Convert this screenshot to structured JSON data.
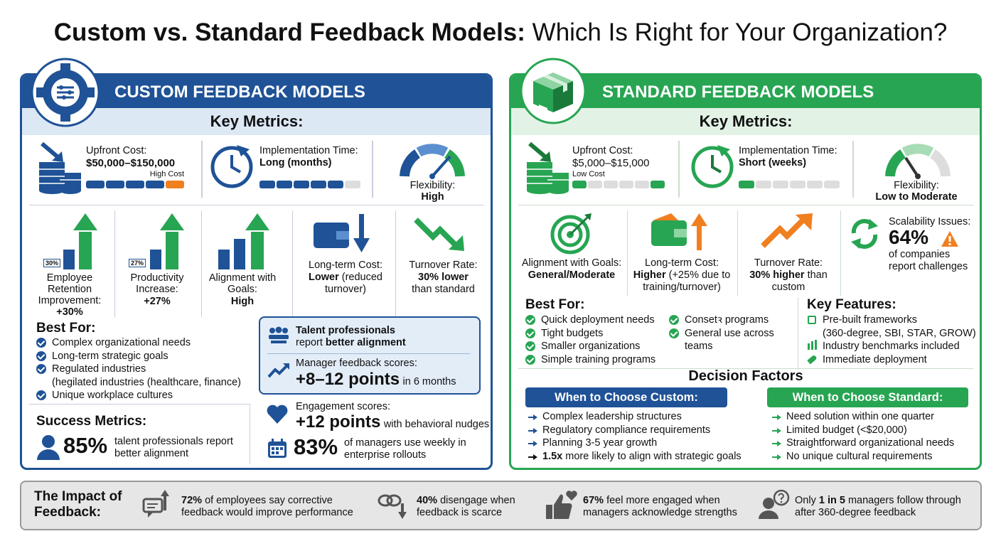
{
  "title": {
    "bold": "Custom vs. Standard Feedback Models:",
    "rest": "Which Is Right for Your Organization?"
  },
  "custom": {
    "heading": "CUSTOM FEEDBACK MODELS",
    "key_metrics": "Key Metrics:",
    "upfront": {
      "label": "Upfront Cost:",
      "value": "$50,000–$150,000",
      "note": "High Cost"
    },
    "implementation": {
      "label": "Implementation Time:",
      "value": "Long (months)"
    },
    "flexibility": {
      "label": "Flexibility:",
      "value": "High"
    },
    "stats": [
      {
        "badge": "30%",
        "label": "Employee Retention Improvement:",
        "value": "+30%"
      },
      {
        "badge": "27%",
        "label": "Productivity Increase:",
        "value": "+27%"
      },
      {
        "label": "Alignment with Goals:",
        "value": "High"
      },
      {
        "label": "Long-term Cost:",
        "value": "Lower",
        "detail": "(reduced turnover)"
      },
      {
        "label": "Turnover Rate:",
        "value": "30% lower",
        "detail": "than standard"
      }
    ],
    "best_for": {
      "title": "Best For:",
      "items": [
        "Complex organizational needs",
        "Long-term strategic goals",
        "Regulated industries",
        "Unique workplace cultures"
      ],
      "regulated_detail": "(hegilated industries (healthcare, finance)"
    },
    "success": {
      "title": "Success Metrics:",
      "value": "85%",
      "text": "talent professionals report better alignment"
    },
    "highlight": {
      "lead": "Talent professionals",
      "text": "report",
      "emph": "better alignment",
      "manager_label": "Manager feedback scores:",
      "manager_value": "+8–12 points",
      "manager_detail": "in 6 months"
    },
    "engagement": {
      "label": "Engagement scores:",
      "value": "+12 points",
      "detail": "with behavioral nudges"
    },
    "weekly": {
      "value": "83%",
      "text": "of managers use weekly in enterprise rollouts"
    }
  },
  "standard": {
    "heading": "STANDARD FEEDBACK MODELS",
    "key_metrics": "Key Metrics:",
    "upfront": {
      "label": "Upfront Cost:",
      "value": "$5,000–$15,000",
      "note": "Low Cost"
    },
    "implementation": {
      "label": "Implementation Time:",
      "value": "Short (weeks)"
    },
    "flexibility": {
      "label": "Flexibility:",
      "value": "Low to Moderate"
    },
    "stats": [
      {
        "label": "Alignment with Goals:",
        "value": "General/Moderate"
      },
      {
        "label": "Long-term Cost:",
        "value": "Higher",
        "detail": "(+25% due to training/turnover)"
      },
      {
        "label": "Turnover Rate:",
        "value": "30% higher",
        "detail": "than custom"
      },
      {
        "label": "Scalability Issues:",
        "value": "64%",
        "detail": "of companies report challenges"
      }
    ],
    "best_for": {
      "title": "Best For:",
      "items": [
        "Quick deployment needs",
        "Tight budgets",
        "Smaller organizations",
        "Simple training programs",
        "Consetꝛ programs",
        "General use across teams"
      ]
    },
    "key_features": {
      "title": "Key Features:",
      "items": [
        "Pre-built frameworks",
        "Industry benchmarks included",
        "Immediate deployment"
      ],
      "frameworks_detail": "(360-degree, SBI, STAR, GROW)"
    }
  },
  "decision": {
    "title": "Decision Factors",
    "custom": {
      "heading": "When to Choose Custom:",
      "items": [
        "Complex leadership structures",
        "Regulatory compliance requirements",
        "Planning 3-5 year growth"
      ],
      "emph": "1.5x",
      "emph_text": "more likely to align with strategic goals"
    },
    "standard": {
      "heading": "When to Choose Standard:",
      "items": [
        "Need solution within one quarter",
        "Limited budget (<$20,000)",
        "Straightforward organizational needs",
        "No unique cultural requirements"
      ]
    }
  },
  "impact": {
    "title": "The Impact of Feedback:",
    "items": [
      {
        "emph": "72%",
        "text": "of employees say corrective feedback would improve performance"
      },
      {
        "emph": "40%",
        "text": "disengage when feedback is scarce"
      },
      {
        "emph": "67%",
        "text": "feel more engaged when managers acknowledge strengths"
      },
      {
        "lead": "Only",
        "emph": "1 in 5",
        "text": "managers follow through after 360-degree feedback"
      }
    ]
  }
}
